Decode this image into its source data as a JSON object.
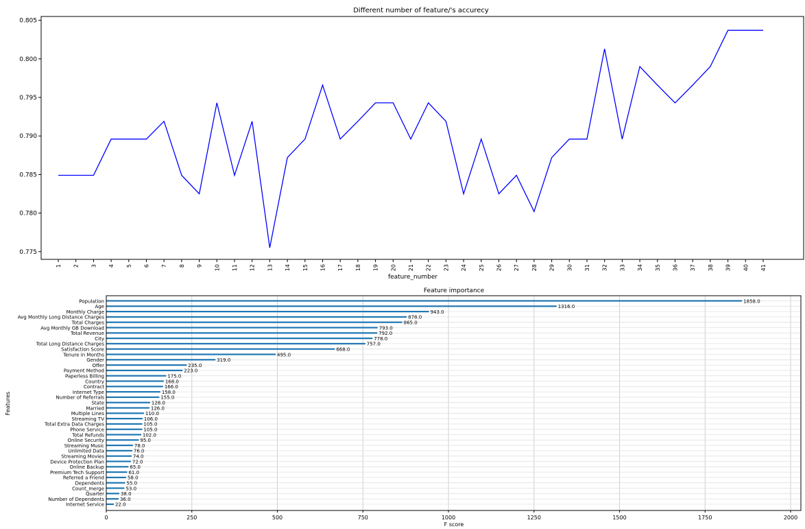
{
  "chart_data": [
    {
      "type": "line",
      "title": "Different number of feature/'s accurecy",
      "xlabel": "feature_number",
      "ylabel": "",
      "x": [
        1,
        2,
        3,
        4,
        5,
        6,
        7,
        8,
        9,
        10,
        11,
        12,
        13,
        14,
        15,
        16,
        17,
        18,
        19,
        20,
        21,
        22,
        23,
        24,
        25,
        26,
        27,
        28,
        29,
        30,
        31,
        32,
        33,
        34,
        35,
        36,
        37,
        38,
        39,
        40,
        41
      ],
      "y": [
        0.7849,
        0.7849,
        0.7849,
        0.7896,
        0.7896,
        0.7896,
        0.7919,
        0.7849,
        0.7825,
        0.7943,
        0.7849,
        0.7919,
        0.7755,
        0.7872,
        0.7896,
        0.7966,
        0.7896,
        0.7919,
        0.7943,
        0.7943,
        0.7896,
        0.7943,
        0.7919,
        0.7825,
        0.7896,
        0.7825,
        0.7849,
        0.7802,
        0.7872,
        0.7896,
        0.7896,
        0.8013,
        0.7896,
        0.799,
        0.7966,
        0.7943,
        0.7966,
        0.799,
        0.8037,
        0.8037,
        0.8037
      ],
      "xticks": [
        "1",
        "2",
        "3",
        "4",
        "5",
        "6",
        "7",
        "8",
        "9",
        "10",
        "11",
        "12",
        "13",
        "14",
        "15",
        "16",
        "17",
        "18",
        "19",
        "20",
        "21",
        "22",
        "23",
        "24",
        "25",
        "26",
        "27",
        "28",
        "29",
        "30",
        "31",
        "32",
        "33",
        "34",
        "35",
        "36",
        "37",
        "38",
        "39",
        "40",
        "41"
      ],
      "yticks": [
        "0.775",
        "0.780",
        "0.785",
        "0.790",
        "0.795",
        "0.800",
        "0.805"
      ],
      "ylim": [
        0.774,
        0.8055
      ],
      "grid": false,
      "line_color": "#0000ff"
    },
    {
      "type": "bar",
      "orientation": "horizontal",
      "title": "Feature importance",
      "xlabel": "F score",
      "ylabel": "Features",
      "categories": [
        "Population",
        "Age",
        "Monthly Charge",
        "Avg Monthly Long Distance Charges",
        "Total Charges",
        "Avg Monthly GB Download",
        "Total Revenue",
        "City",
        "Total Long Distance Charges",
        "Satisfaction Score",
        "Tenure in Months",
        "Gender",
        "Offer",
        "Payment Method",
        "Paperless Billing",
        "Country",
        "Contract",
        "Internet Type",
        "Number of Referrals",
        "State",
        "Married",
        "Multiple Lines",
        "Streaming TV",
        "Total Extra Data Charges",
        "Phone Service",
        "Total Refunds",
        "Online Security",
        "Streaming Music",
        "Unlimited Data",
        "Streaming Movies",
        "Device Protection Plan",
        "Online Backup",
        "Premium Tech Support",
        "Referred a Friend",
        "Dependents",
        "Count_merge",
        "Quarter",
        "Number of Dependents",
        "Internet Service"
      ],
      "values": [
        1858,
        1316,
        943,
        878,
        865,
        793,
        792,
        778,
        757,
        668,
        495,
        319,
        235,
        223,
        175,
        168,
        166,
        158,
        155,
        128,
        126,
        110,
        106,
        105,
        105,
        102,
        95,
        78,
        76,
        74,
        72,
        65,
        61,
        58,
        55,
        53,
        38,
        36,
        22
      ],
      "value_labels": [
        "1858.0",
        "1316.0",
        "943.0",
        "878.0",
        "865.0",
        "793.0",
        "792.0",
        "778.0",
        "757.0",
        "668.0",
        "495.0",
        "319.0",
        "235.0",
        "223.0",
        "175.0",
        "168.0",
        "166.0",
        "158.0",
        "155.0",
        "128.0",
        "126.0",
        "110.0",
        "106.0",
        "105.0",
        "105.0",
        "102.0",
        "95.0",
        "78.0",
        "76.0",
        "74.0",
        "72.0",
        "65.0",
        "61.0",
        "58.0",
        "55.0",
        "53.0",
        "38.0",
        "36.0",
        "22.0"
      ],
      "xticks": [
        "0",
        "250",
        "500",
        "750",
        "1000",
        "1250",
        "1500",
        "1750",
        "2000"
      ],
      "xlim": [
        0,
        2030
      ],
      "grid": true,
      "bar_color": "#1f77b4"
    }
  ]
}
